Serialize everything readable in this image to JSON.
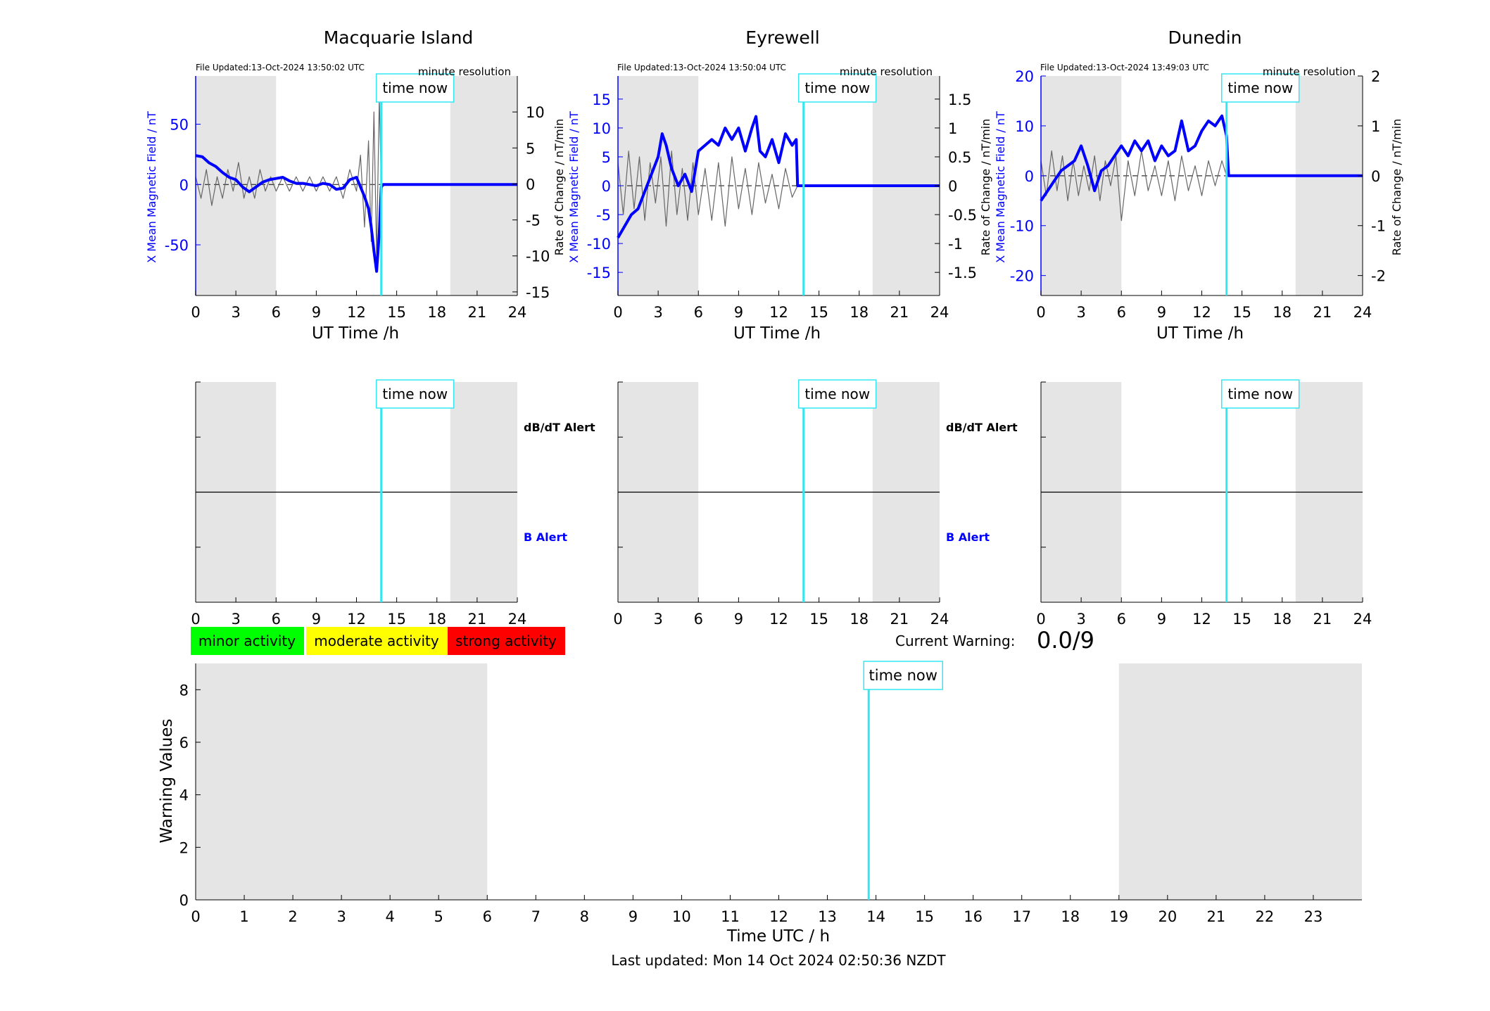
{
  "colors": {
    "field": "#0000ff",
    "rate": "#666666",
    "now_line": "#33e6f2",
    "shade": "#e5e5e5",
    "minor": "#00ff00",
    "moderate": "#ffff00",
    "strong": "#ff0000"
  },
  "now_label": "time now",
  "now_hour": 13.85,
  "night_shading_h": [
    [
      0,
      6
    ],
    [
      19,
      24
    ]
  ],
  "top_row": {
    "xlabel": "UT Time /h",
    "xticks": [
      "0",
      "3",
      "6",
      "9",
      "12",
      "15",
      "18",
      "21",
      "24"
    ],
    "resolution": "minute resolution",
    "left_ylabel": "X Mean Magnetic Field / nT",
    "right_ylabel": "Rate of Change / nT/min"
  },
  "alerts": {
    "dbdt": "dB/dT Alert",
    "b": "B Alert",
    "xticks": [
      "0",
      "3",
      "6",
      "9",
      "12",
      "15",
      "18",
      "21",
      "24"
    ]
  },
  "legend": {
    "minor": "minor activity",
    "moderate": "moderate activity",
    "strong": "strong activity"
  },
  "current_warning": {
    "label": "Current Warning:",
    "value": "0.0/9"
  },
  "warning_plot": {
    "xlabel": "Time UTC / h",
    "ylabel": "Warning Values",
    "xticks": [
      "0",
      "1",
      "2",
      "3",
      "4",
      "5",
      "6",
      "7",
      "8",
      "9",
      "10",
      "11",
      "12",
      "13",
      "14",
      "15",
      "16",
      "17",
      "18",
      "19",
      "20",
      "21",
      "22",
      "23"
    ],
    "yticks": [
      "0",
      "2",
      "4",
      "6",
      "8"
    ],
    "ylim": [
      0,
      9
    ],
    "xlim": [
      0,
      24
    ]
  },
  "last_updated": "Last updated: Mon 14 Oct 2024 02:50:36 NZDT",
  "chart_data": [
    {
      "type": "line",
      "title": "Macquarie Island",
      "file_updated": "File Updated:13-Oct-2024 13:50:02 UTC",
      "xlim": [
        0,
        24
      ],
      "ylim_left": [
        -92,
        90
      ],
      "yticks_left": [
        "50",
        "0",
        "-50"
      ],
      "ylim_right": [
        -15.5,
        15
      ],
      "yticks_right": [
        "10",
        "5",
        "0",
        "-5",
        "-10",
        "-15"
      ],
      "series": [
        {
          "axis": "left",
          "x": [
            0,
            0.5,
            1,
            1.5,
            2,
            2.5,
            3,
            3.5,
            4,
            4.5,
            5,
            5.5,
            6,
            6.5,
            7,
            7.5,
            8,
            8.5,
            9,
            9.5,
            10,
            10.5,
            11,
            11.5,
            12,
            12.3,
            12.6,
            12.9,
            13.1,
            13.3,
            13.5,
            13.7,
            13.85,
            14,
            24
          ],
          "values": [
            24,
            23,
            18,
            15,
            10,
            6,
            4,
            -2,
            -6,
            -2,
            2,
            4,
            5,
            6,
            3,
            1,
            1,
            0,
            -1,
            1,
            0,
            -4,
            -3,
            4,
            6,
            -2,
            -10,
            -20,
            -35,
            -55,
            -72,
            -40,
            -2,
            0,
            0
          ]
        },
        {
          "axis": "right",
          "x": [
            0,
            0.4,
            0.8,
            1.2,
            1.6,
            2,
            2.4,
            2.8,
            3.2,
            3.6,
            4,
            4.4,
            4.8,
            5.2,
            5.6,
            6,
            6.5,
            7,
            7.5,
            8,
            8.5,
            9,
            9.5,
            10,
            10.5,
            11,
            11.5,
            12,
            12.3,
            12.6,
            12.9,
            13.1,
            13.3,
            13.5,
            13.7,
            13.85
          ],
          "values": [
            1,
            -2,
            2,
            -3,
            1,
            -2,
            2,
            -1,
            3,
            -2,
            1,
            -2,
            2,
            -1,
            1,
            -1,
            1,
            -1,
            1,
            -1,
            1,
            -1,
            1,
            -1,
            1,
            -2,
            2,
            -1,
            4,
            -6,
            6,
            -8,
            10,
            -10,
            12,
            0
          ]
        }
      ]
    },
    {
      "type": "line",
      "title": "Eyrewell",
      "file_updated": "File Updated:13-Oct-2024 13:50:04 UTC",
      "xlim": [
        0,
        24
      ],
      "ylim_left": [
        -19,
        19
      ],
      "yticks_left": [
        "15",
        "10",
        "5",
        "0",
        "-5",
        "-10",
        "-15"
      ],
      "ylim_right": [
        -1.9,
        1.9
      ],
      "yticks_right": [
        "1.5",
        "1",
        "0.5",
        "0",
        "-0.5",
        "-1",
        "-1.5"
      ],
      "series": [
        {
          "axis": "left",
          "x": [
            0,
            0.5,
            1,
            1.5,
            2,
            2.5,
            3,
            3.3,
            3.6,
            4,
            4.5,
            5,
            5.5,
            6,
            6.5,
            7,
            7.5,
            8,
            8.5,
            9,
            9.5,
            10,
            10.3,
            10.6,
            11,
            11.5,
            12,
            12.5,
            13,
            13.3,
            13.4,
            24
          ],
          "values": [
            -9,
            -7,
            -5,
            -4,
            -1,
            2,
            5,
            9,
            7,
            3,
            0,
            2,
            -1,
            6,
            7,
            8,
            7,
            10,
            8,
            10,
            6,
            10,
            12,
            6,
            5,
            8,
            4,
            9,
            7,
            8,
            0,
            0
          ]
        },
        {
          "axis": "right",
          "x": [
            0,
            0.4,
            0.8,
            1.2,
            1.6,
            2,
            2.4,
            2.8,
            3.2,
            3.6,
            4,
            4.4,
            4.8,
            5.2,
            5.6,
            6,
            6.5,
            7,
            7.5,
            8,
            8.5,
            9,
            9.5,
            10,
            10.5,
            11,
            11.5,
            12,
            12.5,
            13,
            13.4
          ],
          "values": [
            0.4,
            -0.5,
            0.6,
            -0.4,
            0.5,
            -0.6,
            0.4,
            -0.3,
            0.5,
            -0.7,
            0.6,
            -0.5,
            0.3,
            -0.6,
            0.4,
            -0.5,
            0.3,
            -0.6,
            0.4,
            -0.7,
            0.5,
            -0.4,
            0.3,
            -0.5,
            0.4,
            -0.3,
            0.2,
            -0.4,
            0.3,
            -0.2,
            0
          ]
        }
      ]
    },
    {
      "type": "line",
      "title": "Dunedin",
      "file_updated": "File Updated:13-Oct-2024 13:49:03 UTC",
      "xlim": [
        0,
        24
      ],
      "ylim_left": [
        -24,
        20
      ],
      "yticks_left": [
        "20",
        "10",
        "0",
        "-10",
        "-20"
      ],
      "ylim_right": [
        -2.4,
        2
      ],
      "yticks_right": [
        "2",
        "1",
        "0",
        "-1",
        "-2"
      ],
      "series": [
        {
          "axis": "left",
          "x": [
            0,
            0.5,
            1,
            1.5,
            2,
            2.5,
            3,
            3.5,
            4,
            4.5,
            5,
            5.5,
            6,
            6.5,
            7,
            7.5,
            8,
            8.5,
            9,
            9.5,
            10,
            10.5,
            11,
            11.5,
            12,
            12.5,
            13,
            13.5,
            13.85,
            14,
            24
          ],
          "values": [
            -5,
            -3,
            -1,
            1,
            2,
            3,
            6,
            2,
            -3,
            1,
            2,
            4,
            6,
            4,
            7,
            5,
            7,
            3,
            6,
            4,
            5,
            11,
            5,
            6,
            9,
            11,
            10,
            12,
            8,
            0,
            0
          ]
        },
        {
          "axis": "right",
          "x": [
            0,
            0.4,
            0.8,
            1.2,
            1.6,
            2,
            2.4,
            2.8,
            3.2,
            3.6,
            4,
            4.4,
            4.8,
            5.2,
            5.6,
            6,
            6.5,
            7,
            7.5,
            8,
            8.5,
            9,
            9.5,
            10,
            10.5,
            11,
            11.5,
            12,
            12.5,
            13,
            13.5,
            13.85
          ],
          "values": [
            0.3,
            -0.4,
            0.5,
            -0.3,
            0.4,
            -0.5,
            0.3,
            -0.4,
            0.2,
            -0.3,
            0.4,
            -0.5,
            0.3,
            -0.2,
            0.4,
            -0.9,
            0.3,
            -0.4,
            0.5,
            -0.3,
            0.2,
            -0.4,
            0.3,
            -0.5,
            0.4,
            -0.3,
            0.2,
            -0.4,
            0.3,
            -0.2,
            0.3,
            0
          ]
        }
      ]
    },
    {
      "type": "line",
      "title": "",
      "xlabel": "Time UTC / h",
      "ylabel": "Warning Values",
      "xlim": [
        0,
        24
      ],
      "ylim": [
        0,
        9
      ],
      "series": [
        {
          "x": [],
          "values": []
        }
      ]
    }
  ]
}
